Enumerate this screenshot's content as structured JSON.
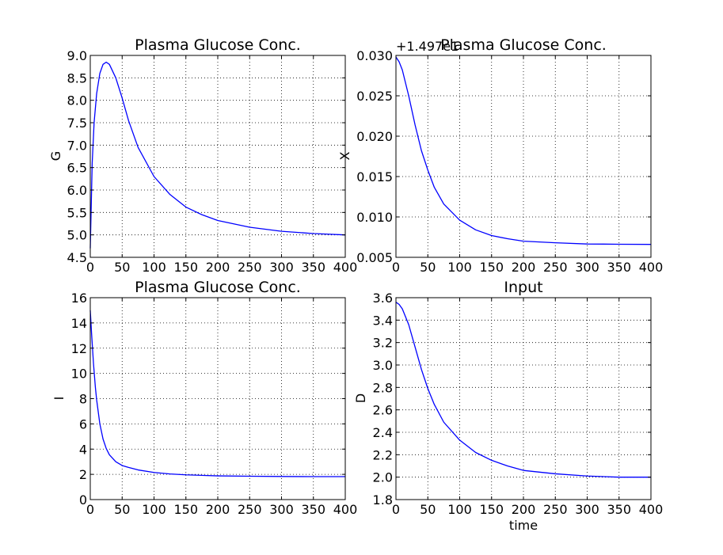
{
  "chart_data": [
    {
      "type": "line",
      "title": "Plasma Glucose Conc.",
      "xlabel": "",
      "ylabel": "G",
      "offset_text": "",
      "grid": true,
      "xlim": [
        0,
        400
      ],
      "ylim": [
        4.5,
        9.0
      ],
      "xticks": [
        0,
        50,
        100,
        150,
        200,
        250,
        300,
        350,
        400
      ],
      "xtick_labels": [
        "0",
        "50",
        "100",
        "150",
        "200",
        "250",
        "300",
        "350",
        "400"
      ],
      "yticks": [
        4.5,
        5.0,
        5.5,
        6.0,
        6.5,
        7.0,
        7.5,
        8.0,
        8.5,
        9.0
      ],
      "ytick_labels": [
        "4.5",
        "5.0",
        "5.5",
        "6.0",
        "6.5",
        "7.0",
        "7.5",
        "8.0",
        "8.5",
        "9.0"
      ],
      "series": [
        {
          "color": "#0000ff",
          "x": [
            0,
            3,
            6,
            10,
            15,
            20,
            25,
            30,
            40,
            50,
            60,
            75,
            100,
            125,
            150,
            175,
            200,
            250,
            300,
            350,
            400
          ],
          "y": [
            4.7,
            6.6,
            7.5,
            8.15,
            8.6,
            8.8,
            8.85,
            8.8,
            8.5,
            8.05,
            7.55,
            6.95,
            6.3,
            5.9,
            5.62,
            5.45,
            5.32,
            5.17,
            5.08,
            5.03,
            5.0
          ]
        }
      ]
    },
    {
      "type": "line",
      "title": "Plasma Glucose Conc.",
      "xlabel": "",
      "ylabel": "X",
      "offset_text": "+1.497e1",
      "grid": true,
      "xlim": [
        0,
        400
      ],
      "ylim": [
        0.005,
        0.03
      ],
      "xticks": [
        0,
        50,
        100,
        150,
        200,
        250,
        300,
        350,
        400
      ],
      "xtick_labels": [
        "0",
        "50",
        "100",
        "150",
        "200",
        "250",
        "300",
        "350",
        "400"
      ],
      "yticks": [
        0.005,
        0.01,
        0.015,
        0.02,
        0.025,
        0.03
      ],
      "ytick_labels": [
        "0.005",
        "0.010",
        "0.015",
        "0.020",
        "0.025",
        "0.030"
      ],
      "series": [
        {
          "color": "#0000ff",
          "x": [
            0,
            5,
            10,
            20,
            30,
            40,
            50,
            60,
            75,
            100,
            125,
            150,
            175,
            200,
            250,
            300,
            350,
            400
          ],
          "y": [
            0.0298,
            0.0292,
            0.0282,
            0.025,
            0.0214,
            0.0182,
            0.0158,
            0.0137,
            0.0116,
            0.0096,
            0.0084,
            0.0077,
            0.0073,
            0.007,
            0.0068,
            0.00665,
            0.00662,
            0.0066
          ]
        }
      ]
    },
    {
      "type": "line",
      "title": "Plasma Glucose Conc.",
      "xlabel": "",
      "ylabel": "I",
      "offset_text": "",
      "grid": true,
      "xlim": [
        0,
        400
      ],
      "ylim": [
        0,
        16
      ],
      "xticks": [
        0,
        50,
        100,
        150,
        200,
        250,
        300,
        350,
        400
      ],
      "xtick_labels": [
        "0",
        "50",
        "100",
        "150",
        "200",
        "250",
        "300",
        "350",
        "400"
      ],
      "yticks": [
        0,
        2,
        4,
        6,
        8,
        10,
        12,
        14,
        16
      ],
      "ytick_labels": [
        "0",
        "2",
        "4",
        "6",
        "8",
        "10",
        "12",
        "14",
        "16"
      ],
      "series": [
        {
          "color": "#0000ff",
          "x": [
            0,
            2,
            5,
            8,
            10,
            15,
            20,
            25,
            30,
            40,
            50,
            60,
            75,
            100,
            125,
            150,
            200,
            250,
            300,
            350,
            400
          ],
          "y": [
            15.0,
            13.2,
            10.8,
            8.9,
            7.9,
            6.0,
            4.8,
            4.05,
            3.55,
            3.0,
            2.7,
            2.55,
            2.35,
            2.15,
            2.03,
            1.96,
            1.88,
            1.85,
            1.83,
            1.82,
            1.82
          ]
        }
      ]
    },
    {
      "type": "line",
      "title": "Input",
      "xlabel": "time",
      "ylabel": "D",
      "offset_text": "",
      "grid": true,
      "xlim": [
        0,
        400
      ],
      "ylim": [
        1.8,
        3.6
      ],
      "xticks": [
        0,
        50,
        100,
        150,
        200,
        250,
        300,
        350,
        400
      ],
      "xtick_labels": [
        "0",
        "50",
        "100",
        "150",
        "200",
        "250",
        "300",
        "350",
        "400"
      ],
      "yticks": [
        1.8,
        2.0,
        2.2,
        2.4,
        2.6,
        2.8,
        3.0,
        3.2,
        3.4,
        3.6
      ],
      "ytick_labels": [
        "1.8",
        "2.0",
        "2.2",
        "2.4",
        "2.6",
        "2.8",
        "3.0",
        "3.2",
        "3.4",
        "3.6"
      ],
      "series": [
        {
          "color": "#0000ff",
          "x": [
            0,
            5,
            10,
            20,
            30,
            40,
            50,
            60,
            75,
            100,
            125,
            150,
            175,
            200,
            250,
            300,
            350,
            400
          ],
          "y": [
            3.56,
            3.54,
            3.5,
            3.36,
            3.16,
            2.96,
            2.79,
            2.65,
            2.49,
            2.33,
            2.22,
            2.15,
            2.1,
            2.06,
            2.03,
            2.01,
            2.0,
            2.0
          ]
        }
      ]
    }
  ]
}
